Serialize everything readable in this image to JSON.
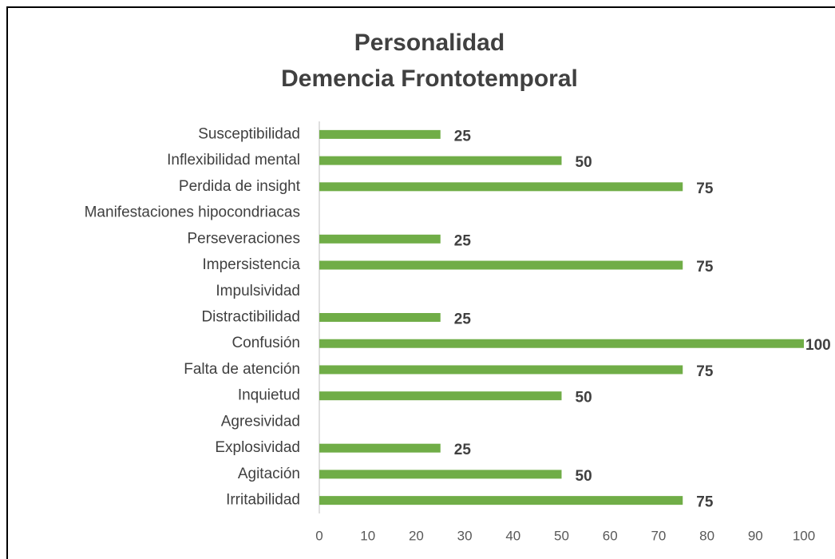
{
  "chart_data": {
    "type": "bar",
    "orientation": "horizontal",
    "title": [
      "Personalidad",
      "Demencia Frontotemporal"
    ],
    "categories": [
      "Susceptibilidad",
      "Inflexibilidad mental",
      "Perdida de insight",
      "Manifestaciones hipocondriacas",
      "Perseveraciones",
      "Impersistencia",
      "Impulsividad",
      "Distractibilidad",
      "Confusión",
      "Falta de atención",
      "Inquietud",
      "Agresividad",
      "Explosividad",
      "Agitación",
      "Irritabilidad"
    ],
    "values": [
      25,
      50,
      75,
      0,
      25,
      75,
      0,
      25,
      100,
      75,
      50,
      0,
      25,
      50,
      75
    ],
    "value_labels": [
      "25",
      "50",
      "75",
      null,
      "25",
      "75",
      null,
      "25",
      "100",
      "75",
      "50",
      null,
      "25",
      "50",
      "75"
    ],
    "color": "#70ad47",
    "xlim": [
      0,
      100
    ],
    "xticks": [
      0,
      10,
      20,
      30,
      40,
      50,
      60,
      70,
      80,
      90,
      100
    ],
    "grid": false
  }
}
